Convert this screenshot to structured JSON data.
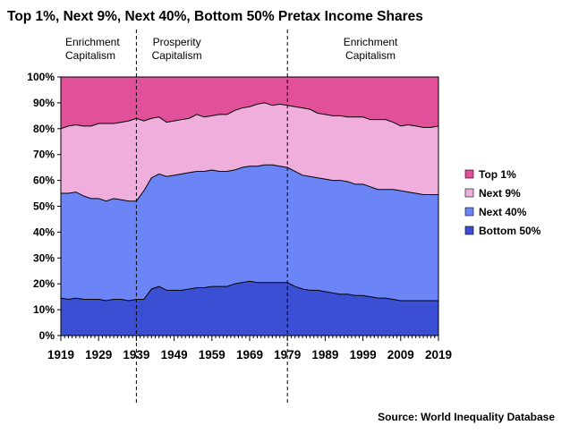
{
  "chart_data": {
    "type": "area",
    "stacked": true,
    "title": "Top 1%, Next 9%, Next 40%, Bottom 50% Pretax Income Shares",
    "source": "Source: World Inequality Database",
    "xlabel": "",
    "ylabel": "",
    "xlim": [
      1919,
      2019
    ],
    "ylim": [
      0,
      100
    ],
    "x_ticks": [
      "1919",
      "1929",
      "1939",
      "1949",
      "1959",
      "1969",
      "1979",
      "1989",
      "1999",
      "2009",
      "2019"
    ],
    "y_ticks": [
      "0%",
      "10%",
      "20%",
      "30%",
      "40%",
      "50%",
      "60%",
      "70%",
      "80%",
      "90%",
      "100%"
    ],
    "legend": {
      "position": "right",
      "entries": [
        {
          "label": "Top 1%",
          "color": "#e0519a"
        },
        {
          "label": "Next 9%",
          "color": "#efaedb"
        },
        {
          "label": "Next 40%",
          "color": "#6b85f7"
        },
        {
          "label": "Bottom 50%",
          "color": "#3a4fd4"
        }
      ]
    },
    "annotations": {
      "era_dividers": [
        1939,
        1979
      ],
      "eras": [
        {
          "line1": "Enrichment",
          "line2": "Capitalism",
          "align": "left"
        },
        {
          "line1": "Prosperity",
          "line2": "Capitalism",
          "align": "center"
        },
        {
          "line1": "Enrichment",
          "line2": "Capitalism",
          "align": "center"
        }
      ]
    },
    "x": [
      1919,
      1921,
      1923,
      1925,
      1927,
      1929,
      1931,
      1933,
      1935,
      1937,
      1939,
      1941,
      1943,
      1945,
      1947,
      1949,
      1951,
      1953,
      1955,
      1957,
      1959,
      1961,
      1963,
      1965,
      1967,
      1969,
      1971,
      1973,
      1975,
      1977,
      1979,
      1981,
      1983,
      1985,
      1987,
      1989,
      1991,
      1993,
      1995,
      1997,
      1999,
      2001,
      2003,
      2005,
      2007,
      2009,
      2011,
      2013,
      2015,
      2017,
      2019
    ],
    "series": [
      {
        "name": "Bottom 50%",
        "color": "#3a4fd4",
        "values": [
          14.5,
          14,
          14.5,
          14,
          14,
          14,
          13.5,
          14,
          14,
          13.5,
          14,
          14,
          18,
          19,
          17.5,
          17.5,
          17.5,
          18,
          18.5,
          18.5,
          19,
          19,
          19,
          20,
          20.5,
          21,
          20.5,
          20.5,
          20.5,
          20.5,
          20.5,
          19,
          18,
          17.5,
          17.5,
          17,
          16.5,
          16,
          16,
          15.5,
          15.5,
          15,
          14.5,
          14.5,
          14,
          13.5,
          13.5,
          13.5,
          13.5,
          13.5,
          13.5
        ]
      },
      {
        "name": "Next 40%",
        "color": "#6b85f7",
        "values": [
          40.5,
          41,
          41,
          40,
          39,
          39,
          38.5,
          39,
          38.5,
          38.5,
          38,
          42,
          43,
          43.5,
          44,
          44.5,
          45,
          45,
          45,
          45,
          45,
          44.5,
          44.5,
          44,
          44.5,
          44.5,
          45,
          45.5,
          45.5,
          45,
          44.5,
          44.5,
          44,
          44,
          43.5,
          43.5,
          43.5,
          44,
          43.5,
          43,
          43,
          42.5,
          42,
          42,
          42.5,
          42.5,
          42,
          41.5,
          41,
          41,
          41
        ]
      },
      {
        "name": "Next 9%",
        "color": "#efaedb",
        "values": [
          25,
          26,
          26,
          27,
          28,
          29,
          30,
          29,
          30,
          31,
          32,
          27,
          23,
          22,
          21,
          21,
          21,
          21,
          22,
          21,
          21,
          22,
          22,
          23,
          23,
          23,
          24,
          24,
          23,
          24,
          24,
          25,
          26,
          26,
          25,
          25,
          25,
          25,
          25,
          26,
          26,
          26,
          27,
          27,
          26,
          25,
          26,
          26,
          26,
          26,
          26.5
        ]
      },
      {
        "name": "Top 1%",
        "color": "#e0519a",
        "values": [
          20,
          19,
          18.5,
          19,
          19,
          18,
          18,
          18,
          17.5,
          17,
          16,
          17,
          16,
          15.5,
          17.5,
          17,
          16.5,
          16,
          14.5,
          15.5,
          15,
          14.5,
          14.5,
          13,
          12,
          11.5,
          10.5,
          10,
          11,
          10.5,
          11,
          11.5,
          12,
          12.5,
          14,
          14.5,
          15,
          15,
          15.5,
          15.5,
          15.5,
          16.5,
          16.5,
          16.5,
          17.5,
          19,
          18.5,
          19,
          19.5,
          19.5,
          19
        ]
      }
    ]
  }
}
